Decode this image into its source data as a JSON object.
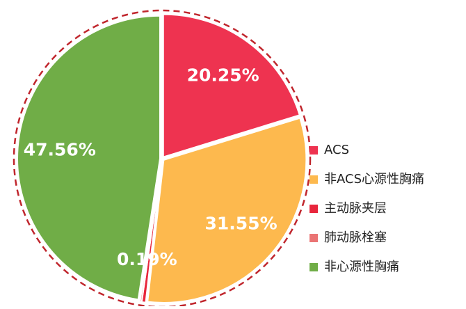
{
  "chart_data": {
    "type": "pie",
    "categories": [
      "ACS",
      "非ACS心源性胸痛",
      "主动脉夹层",
      "肺动脉栓塞",
      "非心源性胸痛"
    ],
    "values": [
      20.25,
      31.55,
      0.45,
      0.19,
      47.56
    ],
    "value_labels": [
      "20.25%",
      "31.55%",
      null,
      "0.19%",
      "47.56%"
    ],
    "colors": [
      "#ee3350",
      "#fdb94e",
      "#e8263c",
      "#ea7474",
      "#70ad47"
    ],
    "legend": "right"
  }
}
